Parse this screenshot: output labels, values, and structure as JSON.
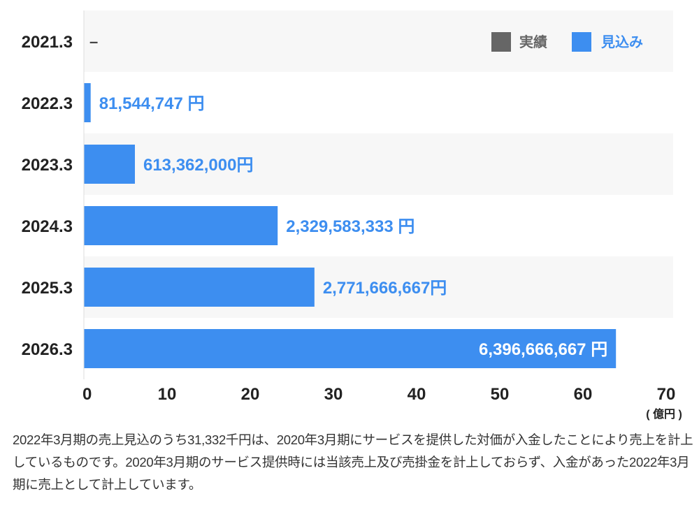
{
  "chart_data": {
    "type": "bar",
    "orientation": "horizontal",
    "categories": [
      "2021.3",
      "2022.3",
      "2023.3",
      "2024.3",
      "2025.3",
      "2026.3"
    ],
    "values": [
      null,
      0.81544747,
      6.13362,
      23.29583333,
      27.71666667,
      63.96666667
    ],
    "value_labels": [
      "–",
      "81,544,747 円",
      "613,362,000円",
      "2,329,583,333 円",
      "2,771,666,667円",
      "6,396,666,667 円"
    ],
    "series_name": "見込み",
    "xlim": [
      0,
      70
    ],
    "xticks": [
      "0",
      "10",
      "20",
      "30",
      "40",
      "50",
      "60",
      "70"
    ],
    "xunit": "( 億円 )",
    "legend": [
      {
        "name": "実績",
        "color": "#666666"
      },
      {
        "name": "見込み",
        "color": "#3d8ef0"
      }
    ],
    "legend_position": "top-right",
    "bar_color": "#3d8ef0",
    "grid": false
  },
  "note": "2022年3月期の売上見込のうち31,332千円は、2020年3月期にサービスを提供した対価が入金したことにより売上を計上しているものです。2020年3月期のサービス提供時には当該売上及び売掛金を計上しておらず、入金があった2022年3月期に売上として計上しています。"
}
